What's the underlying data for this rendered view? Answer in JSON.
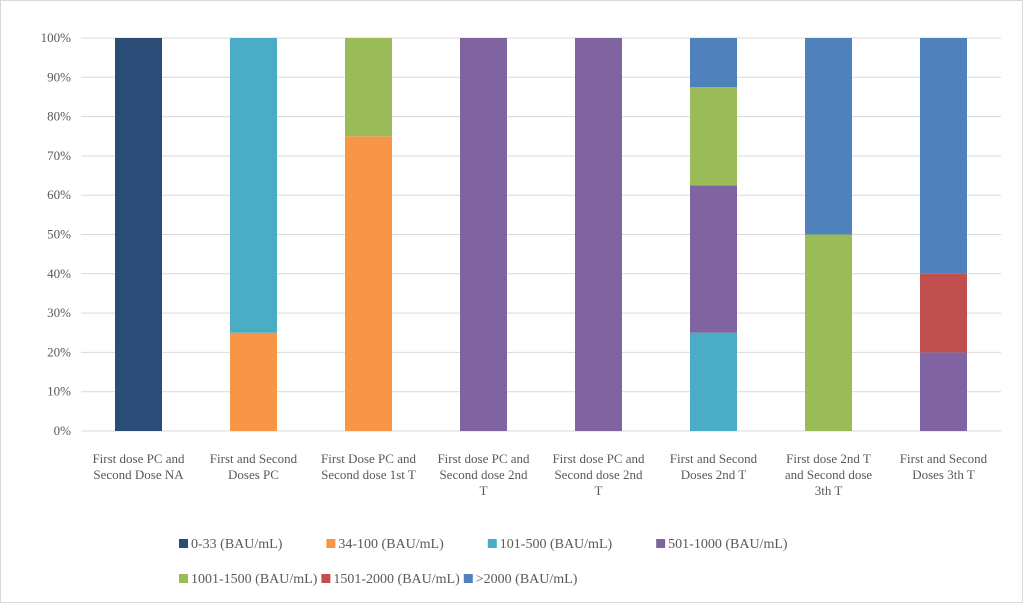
{
  "chart_data": {
    "type": "bar",
    "stacked": true,
    "title": "",
    "xlabel": "",
    "ylabel": "",
    "ylim": [
      0,
      100
    ],
    "yticks": [
      "0%",
      "10%",
      "20%",
      "30%",
      "40%",
      "50%",
      "60%",
      "70%",
      "80%",
      "90%",
      "100%"
    ],
    "grid": true,
    "legend_position": "bottom",
    "categories": [
      [
        "First dose PC and",
        "Second Dose NA"
      ],
      [
        "First and Second",
        "Doses PC"
      ],
      [
        "First Dose PC and",
        "Second dose 1st T"
      ],
      [
        "First dose PC and",
        "Second dose 2nd",
        "T"
      ],
      [
        "First dose PC and",
        "Second dose 2nd",
        "T"
      ],
      [
        "First and Second",
        "Doses 2nd T"
      ],
      [
        "First dose 2nd T",
        "and Second dose",
        "3th T"
      ],
      [
        "First and Second",
        "Doses 3th T"
      ]
    ],
    "series": [
      {
        "name": "0-33 (BAU/mL)",
        "color": "#2b4c76",
        "values": [
          100,
          0,
          0,
          0,
          0,
          0,
          0,
          0
        ]
      },
      {
        "name": "34-100 (BAU/mL)",
        "color": "#f79646",
        "values": [
          0,
          25,
          75,
          0,
          0,
          0,
          0,
          0
        ]
      },
      {
        "name": "101-500 (BAU/mL)",
        "color": "#4bacc6",
        "values": [
          0,
          75,
          0,
          0,
          0,
          25,
          0,
          0
        ]
      },
      {
        "name": "501-1000 (BAU/mL)",
        "color": "#8064a2",
        "values": [
          0,
          0,
          0,
          100,
          100,
          37.5,
          0,
          20
        ]
      },
      {
        "name": "1001-1500 (BAU/mL)",
        "color": "#9bbb59",
        "values": [
          0,
          0,
          25,
          0,
          0,
          25,
          50,
          0
        ]
      },
      {
        "name": "1501-2000 (BAU/mL)",
        "color": "#c0504d",
        "values": [
          0,
          0,
          0,
          0,
          0,
          0,
          0,
          20
        ]
      },
      {
        "name": ">2000 (BAU/mL)",
        "color": "#4f81bd",
        "values": [
          0,
          0,
          0,
          0,
          0,
          12.5,
          50,
          60
        ]
      }
    ]
  }
}
